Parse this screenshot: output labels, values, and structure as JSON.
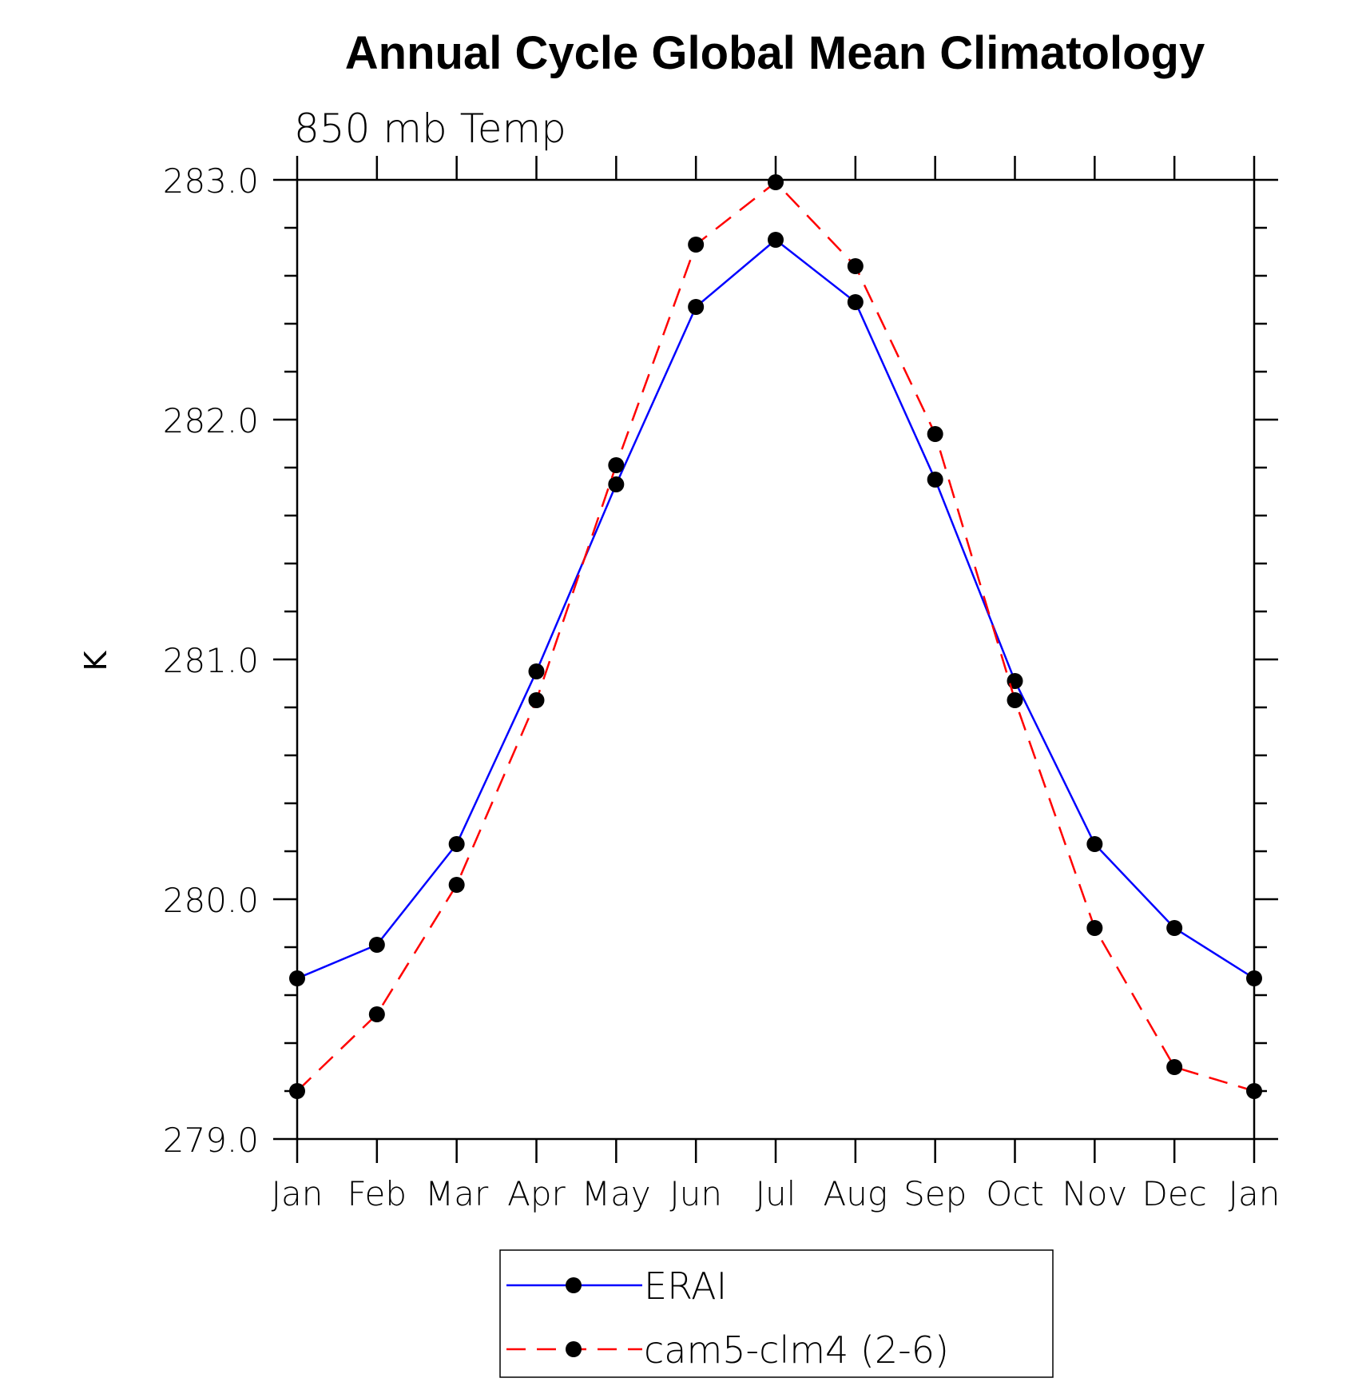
{
  "chart_data": {
    "type": "line",
    "title": "Annual Cycle Global Mean Climatology",
    "subtitle": "850 mb Temp",
    "xlabel": "",
    "ylabel": "K",
    "categories": [
      "Jan",
      "Feb",
      "Mar",
      "Apr",
      "May",
      "Jun",
      "Jul",
      "Aug",
      "Sep",
      "Oct",
      "Nov",
      "Dec",
      "Jan"
    ],
    "ylim": [
      279.0,
      283.0
    ],
    "yticks": [
      279.0,
      280.0,
      281.0,
      282.0,
      283.0
    ],
    "ytick_labels": [
      "279.0",
      "280.0",
      "281.0",
      "282.0",
      "283.0"
    ],
    "y_minor_step": 0.2,
    "grid": false,
    "legend_position": "bottom-center",
    "series": [
      {
        "name": "ERAI",
        "color": "#0000ff",
        "dash": "solid",
        "marker": "filled-circle",
        "values": [
          279.67,
          279.81,
          280.23,
          280.95,
          281.73,
          282.47,
          282.75,
          282.49,
          281.75,
          280.91,
          280.23,
          279.88,
          279.67
        ]
      },
      {
        "name": "cam5-clm4 (2-6)",
        "color": "#ff0000",
        "dash": "dashed",
        "marker": "filled-circle",
        "values": [
          279.2,
          279.52,
          280.06,
          280.83,
          281.81,
          282.73,
          282.99,
          282.64,
          281.94,
          280.83,
          279.88,
          279.3,
          279.2
        ]
      }
    ]
  }
}
